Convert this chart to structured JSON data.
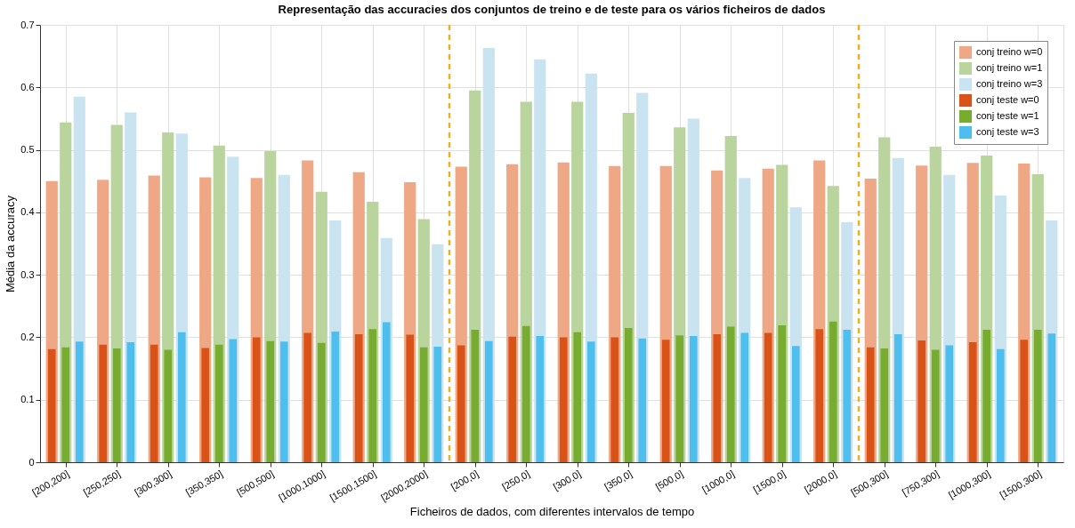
{
  "chart_data": {
    "type": "bar",
    "title": "Representação das accuracies dos conjuntos de treino e de teste para os vários ficheiros de dados",
    "xlabel": "Ficheiros de dados, com diferentes intervalos de tempo",
    "ylabel": "Média da accuracy",
    "categories": [
      "[200,200]",
      "[250,250]",
      "[300,300]",
      "[350,350]",
      "[500,500]",
      "[1000,1000]",
      "[1500,1500]",
      "[2000,2000]",
      "[200,0]",
      "[250,0]",
      "[300,0]",
      "[350,0]",
      "[500,0]",
      "[1000,0]",
      "[1500,0]",
      "[2000,0]",
      "[500,300]",
      "[750,300]",
      "[1000,300]",
      "[1500,300]"
    ],
    "ylim": [
      0,
      0.7
    ],
    "yticks": [
      {
        "value": 0,
        "label": "0"
      },
      0.1,
      0.2,
      0.3,
      0.4,
      0.5,
      0.6,
      0.7
    ],
    "grid": true,
    "legend": "top right",
    "series": [
      {
        "name": "conj treino w=0",
        "color": "#efa886",
        "values": [
          0.45,
          0.452,
          0.459,
          0.456,
          0.455,
          0.483,
          0.464,
          0.448,
          0.473,
          0.477,
          0.48,
          0.474,
          0.474,
          0.467,
          0.47,
          0.483,
          0.454,
          0.475,
          0.479,
          0.478
        ]
      },
      {
        "name": "conj treino w=1",
        "color": "#b9d49c",
        "values": [
          0.544,
          0.54,
          0.528,
          0.507,
          0.498,
          0.433,
          0.417,
          0.389,
          0.595,
          0.577,
          0.577,
          0.559,
          0.536,
          0.522,
          0.476,
          0.442,
          0.52,
          0.505,
          0.491,
          0.461
        ]
      },
      {
        "name": "conj treino w=3",
        "color": "#c9e3f0",
        "values": [
          0.585,
          0.56,
          0.526,
          0.489,
          0.46,
          0.387,
          0.359,
          0.349,
          0.663,
          0.645,
          0.622,
          0.591,
          0.55,
          0.455,
          0.408,
          0.384,
          0.487,
          0.46,
          0.427,
          0.387
        ]
      },
      {
        "name": "conj teste w=0",
        "color": "#d95319",
        "values": [
          0.181,
          0.188,
          0.188,
          0.183,
          0.2,
          0.207,
          0.205,
          0.204,
          0.187,
          0.201,
          0.2,
          0.2,
          0.196,
          0.205,
          0.207,
          0.213,
          0.184,
          0.195,
          0.192,
          0.196
        ]
      },
      {
        "name": "conj teste w=1",
        "color": "#77ac30",
        "values": [
          0.184,
          0.182,
          0.18,
          0.188,
          0.194,
          0.191,
          0.213,
          0.184,
          0.212,
          0.218,
          0.208,
          0.215,
          0.203,
          0.217,
          0.219,
          0.225,
          0.182,
          0.18,
          0.212,
          0.212
        ]
      },
      {
        "name": "conj teste w=3",
        "color": "#4dbeee",
        "values": [
          0.193,
          0.192,
          0.208,
          0.197,
          0.193,
          0.209,
          0.224,
          0.185,
          0.194,
          0.202,
          0.193,
          0.198,
          0.202,
          0.207,
          0.186,
          0.212,
          0.205,
          0.187,
          0.181,
          0.206
        ]
      }
    ]
  }
}
